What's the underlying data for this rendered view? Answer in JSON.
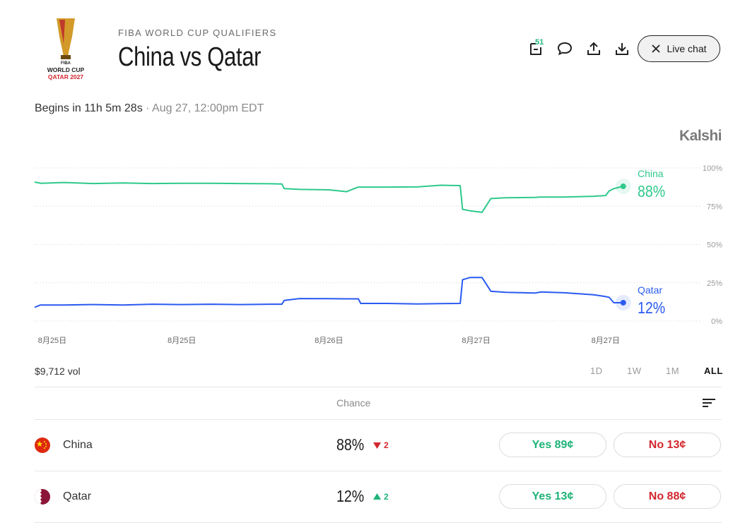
{
  "logo": {
    "org": "FIBA",
    "event": "WORLD CUP",
    "edition": "QATAR 2027"
  },
  "header": {
    "eyebrow": "FIBA WORLD CUP QUALIFIERS",
    "title": "China vs Qatar",
    "comment_count": "51",
    "live_chat": "Live chat"
  },
  "status": {
    "countdown": "Begins in 11h 5m 28s",
    "separator": "·",
    "start": "Aug 27, 12:00pm EDT"
  },
  "brand": "Kalshi",
  "chart_data": {
    "type": "line",
    "x": [
      0,
      1,
      5,
      10,
      15,
      20,
      25,
      30,
      35,
      40,
      42,
      42.4,
      45,
      50,
      53,
      55,
      55.4,
      60,
      65,
      69,
      72.3,
      72.7,
      74,
      76,
      77.5,
      80,
      85,
      86,
      90,
      95,
      97,
      97.6,
      98.4,
      100
    ],
    "series": [
      {
        "name": "China",
        "color": "#2ec98c",
        "label": "88%",
        "values": [
          90.8,
          90,
          90.5,
          89.8,
          90.2,
          89.8,
          90,
          90,
          89.8,
          89.7,
          89.5,
          86.5,
          86,
          85.7,
          84.5,
          87.5,
          87.5,
          87.5,
          87.6,
          88.7,
          88.5,
          73,
          72,
          71,
          80,
          80.5,
          80.8,
          81,
          81,
          81.5,
          82,
          85,
          86.5,
          88
        ]
      },
      {
        "name": "Qatar",
        "color": "#2a5af0",
        "label": "12%",
        "values": [
          9,
          10.5,
          10.5,
          10.8,
          10.5,
          11,
          10.8,
          11,
          10.8,
          11,
          11,
          13.5,
          14.7,
          14.6,
          14.5,
          14.5,
          11.5,
          11.5,
          11.2,
          11.4,
          11.5,
          27,
          28.5,
          28.5,
          19.5,
          18.8,
          18.3,
          19,
          18.5,
          17.2,
          16,
          15.5,
          12,
          12
        ]
      }
    ],
    "xlim": [
      0,
      113
    ],
    "xticks": [
      {
        "value": 3,
        "label": "8月25日"
      },
      {
        "value": 25,
        "label": "8月25日"
      },
      {
        "value": 50,
        "label": "8月26日"
      },
      {
        "value": 75,
        "label": "8月27日"
      },
      {
        "value": 97,
        "label": "8月27日"
      }
    ],
    "ylim": [
      0,
      100
    ],
    "yticks": [
      {
        "value": 0,
        "label": "0%"
      },
      {
        "value": 25,
        "label": "25%"
      },
      {
        "value": 50,
        "label": "50%"
      },
      {
        "value": 75,
        "label": "75%"
      },
      {
        "value": 100,
        "label": "100%"
      }
    ],
    "grid": true
  },
  "volume": "$9,712 vol",
  "ranges": [
    "1D",
    "1W",
    "1M",
    "ALL"
  ],
  "table": {
    "header": "Chance",
    "rows": [
      {
        "name": "China",
        "chance": "88%",
        "change": "2",
        "direction": "down",
        "yes": "Yes 89¢",
        "no": "No 13¢"
      },
      {
        "name": "Qatar",
        "chance": "12%",
        "change": "2",
        "direction": "up",
        "yes": "Yes 13¢",
        "no": "No 88¢"
      }
    ]
  }
}
